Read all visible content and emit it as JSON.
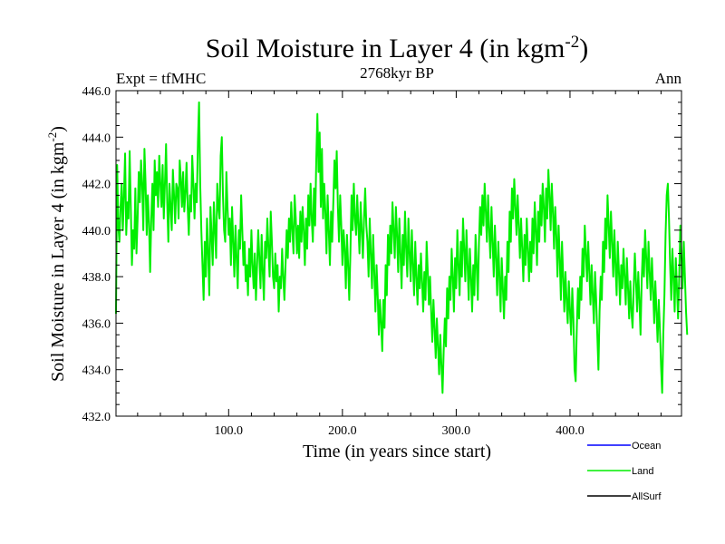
{
  "chart_data": {
    "type": "line",
    "title": "Soil Moisture in Layer 4 (in kgm",
    "title_sup": "-2",
    "title_close": ")",
    "subtitle": "2768kyr BP",
    "left_label": "Expt = tfMHC",
    "right_label": "Ann",
    "xlabel": "Time (in years since start)",
    "ylabel": "Soil Moisture in Layer 4 (in kgm",
    "ylabel_sup": "-2",
    "ylabel_close": ")",
    "xlim": [
      1,
      498
    ],
    "ylim": [
      432.0,
      446.0
    ],
    "x_ticks": [
      100,
      200,
      300,
      400
    ],
    "x_tick_labels": [
      "100.0",
      "200.0",
      "300.0",
      "400.0"
    ],
    "y_ticks": [
      432,
      434,
      436,
      438,
      440,
      442,
      444,
      446
    ],
    "y_tick_labels": [
      "432.0",
      "434.0",
      "436.0",
      "438.0",
      "440.0",
      "442.0",
      "444.0",
      "446.0"
    ],
    "legend": [
      {
        "name": "Ocean",
        "color": "#0000ff"
      },
      {
        "name": "Land",
        "color": "#00ee00"
      },
      {
        "name": "AllSurf",
        "color": "#000000"
      }
    ],
    "series": [
      {
        "name": "Land",
        "color": "#00ee00",
        "x_start": 1,
        "x_step": 1,
        "values": [
          436.4,
          442.8,
          440.2,
          439.5,
          441.0,
          442.0,
          440.0,
          441.5,
          443.3,
          439.8,
          441.2,
          440.5,
          443.4,
          441.0,
          438.5,
          440.0,
          439.2,
          441.8,
          439.0,
          440.5,
          442.5,
          441.2,
          443.0,
          442.0,
          440.0,
          443.5,
          442.0,
          439.8,
          441.5,
          440.3,
          438.2,
          440.5,
          442.0,
          440.0,
          443.0,
          441.5,
          442.5,
          441.0,
          443.2,
          442.0,
          441.0,
          442.8,
          440.5,
          442.0,
          443.7,
          441.2,
          439.5,
          442.0,
          441.0,
          440.0,
          442.6,
          441.5,
          440.3,
          442.0,
          441.8,
          440.5,
          443.0,
          442.2,
          441.0,
          442.5,
          440.8,
          441.6,
          442.9,
          441.0,
          439.8,
          441.5,
          440.8,
          443.2,
          442.0,
          440.5,
          442.0,
          441.2,
          443.8,
          445.5,
          442.0,
          440.0,
          438.5,
          437.0,
          439.5,
          438.0,
          440.5,
          439.0,
          437.2,
          441.0,
          439.8,
          438.5,
          441.2,
          440.0,
          438.8,
          442.0,
          441.0,
          440.5,
          443.2,
          444.0,
          441.5,
          440.0,
          439.5,
          442.5,
          441.0,
          439.8,
          440.5,
          438.5,
          441.0,
          439.5,
          438.0,
          440.2,
          438.8,
          437.5,
          440.0,
          439.2,
          441.5,
          440.0,
          438.5,
          439.5,
          437.8,
          438.5,
          437.2,
          439.2,
          438.0,
          440.0,
          438.5,
          437.5,
          439.0,
          437.0,
          438.5,
          440.0,
          438.8,
          437.5,
          439.8,
          438.2,
          437.0,
          439.5,
          438.8,
          440.5,
          439.2,
          438.0,
          440.8,
          439.5,
          438.0,
          437.5,
          439.0,
          437.8,
          438.5,
          436.5,
          438.0,
          437.5,
          439.2,
          438.0,
          437.0,
          438.5,
          440.0,
          438.8,
          440.5,
          439.5,
          441.2,
          440.0,
          439.0,
          441.5,
          440.5,
          439.0,
          440.2,
          438.8,
          440.8,
          439.5,
          441.0,
          440.0,
          438.5,
          440.5,
          439.2,
          441.5,
          440.2,
          442.0,
          440.5,
          439.5,
          441.8,
          440.2,
          443.0,
          445.0,
          442.5,
          444.2,
          441.0,
          443.5,
          440.5,
          442.0,
          440.8,
          439.0,
          441.5,
          440.0,
          438.5,
          440.8,
          439.5,
          441.2,
          443.0,
          441.8,
          443.4,
          441.0,
          439.5,
          441.5,
          440.2,
          438.5,
          440.0,
          439.2,
          437.5,
          439.8,
          438.5,
          437.0,
          439.0,
          441.5,
          440.0,
          442.0,
          440.5,
          439.8,
          441.5,
          440.2,
          439.0,
          441.2,
          440.0,
          438.8,
          440.5,
          441.8,
          440.2,
          439.5,
          438.0,
          440.5,
          439.0,
          437.5,
          439.8,
          438.2,
          436.5,
          438.5,
          437.2,
          435.5,
          437.0,
          436.0,
          434.8,
          437.0,
          435.8,
          438.5,
          437.2,
          439.8,
          438.5,
          440.2,
          439.0,
          441.2,
          440.0,
          438.8,
          441.0,
          439.8,
          438.2,
          440.5,
          439.0,
          437.5,
          439.8,
          438.5,
          440.8,
          439.2,
          438.0,
          440.5,
          439.0,
          437.8,
          440.0,
          438.5,
          437.2,
          439.5,
          438.0,
          436.8,
          438.5,
          437.5,
          439.0,
          437.8,
          436.5,
          438.2,
          437.0,
          439.5,
          438.2,
          436.8,
          438.0,
          436.5,
          435.2,
          437.0,
          435.8,
          434.5,
          436.2,
          435.0,
          433.8,
          435.5,
          434.2,
          433.0,
          434.8,
          436.2,
          435.0,
          437.5,
          436.2,
          438.0,
          437.0,
          439.2,
          438.0,
          436.5,
          438.8,
          437.5,
          440.0,
          438.5,
          437.2,
          439.5,
          438.0,
          440.5,
          439.2,
          437.8,
          440.0,
          438.5,
          437.0,
          439.2,
          438.0,
          436.5,
          438.5,
          437.2,
          439.8,
          438.5,
          437.0,
          439.5,
          441.0,
          439.8,
          441.5,
          440.2,
          442.0,
          440.8,
          439.5,
          441.5,
          440.0,
          438.8,
          441.0,
          439.5,
          438.0,
          440.2,
          438.8,
          437.2,
          439.5,
          438.0,
          436.5,
          438.8,
          437.5,
          436.2,
          438.0,
          437.0,
          439.5,
          438.2,
          440.8,
          439.5,
          441.8,
          440.5,
          442.2,
          441.0,
          439.8,
          441.5,
          440.2,
          438.8,
          440.5,
          439.2,
          437.8,
          439.8,
          438.5,
          440.5,
          439.2,
          437.8,
          439.5,
          438.2,
          440.5,
          439.0,
          441.2,
          440.0,
          438.5,
          440.8,
          439.5,
          441.5,
          440.2,
          442.0,
          441.0,
          439.5,
          441.8,
          440.5,
          442.6,
          441.5,
          440.0,
          442.0,
          440.8,
          439.2,
          441.0,
          439.8,
          438.0,
          440.2,
          438.8,
          437.0,
          439.5,
          438.0,
          436.5,
          438.2,
          437.0,
          436.0,
          437.8,
          436.5,
          435.5,
          437.5,
          436.2,
          434.0,
          433.5,
          435.8,
          437.5,
          436.2,
          438.0,
          437.0,
          439.2,
          438.0,
          440.2,
          439.0,
          437.8,
          439.5,
          438.2,
          436.8,
          438.5,
          437.2,
          436.0,
          438.2,
          437.0,
          435.5,
          434.0,
          436.5,
          438.0,
          437.0,
          439.5,
          438.2,
          440.5,
          439.2,
          441.5,
          440.2,
          438.8,
          440.8,
          439.5,
          438.0,
          440.0,
          438.5,
          437.2,
          439.5,
          438.2,
          436.8,
          438.5,
          437.5,
          439.2,
          438.0,
          436.8,
          438.8,
          437.5,
          436.2,
          437.8,
          436.5,
          435.8,
          437.5,
          439.0,
          437.8,
          436.5,
          438.2,
          437.0,
          435.5,
          437.8,
          439.2,
          438.0,
          440.0,
          438.8,
          437.5,
          439.5,
          438.2,
          437.0,
          438.8,
          437.5,
          436.0,
          437.8,
          436.5,
          435.2,
          437.0,
          435.8,
          434.2,
          433.0,
          435.5,
          437.2,
          439.8,
          441.5,
          442.0,
          440.5,
          438.5,
          437.0,
          439.2,
          438.0,
          436.5,
          438.8,
          437.5,
          436.2,
          438.0,
          440.2,
          438.8,
          437.5,
          439.5,
          438.0,
          436.5,
          435.5
        ]
      }
    ]
  }
}
